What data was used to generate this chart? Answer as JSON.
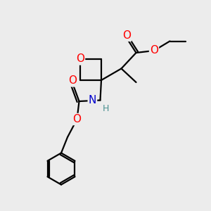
{
  "bg_color": "#ececec",
  "atom_colors": {
    "O": "#ff0000",
    "N": "#0000cc",
    "C": "#000000",
    "H": "#4a9090"
  },
  "bond_color": "#000000",
  "bond_width": 1.6,
  "font_size_atom": 10,
  "fig_size": [
    3.0,
    3.0
  ],
  "dpi": 100,
  "scale": 10
}
